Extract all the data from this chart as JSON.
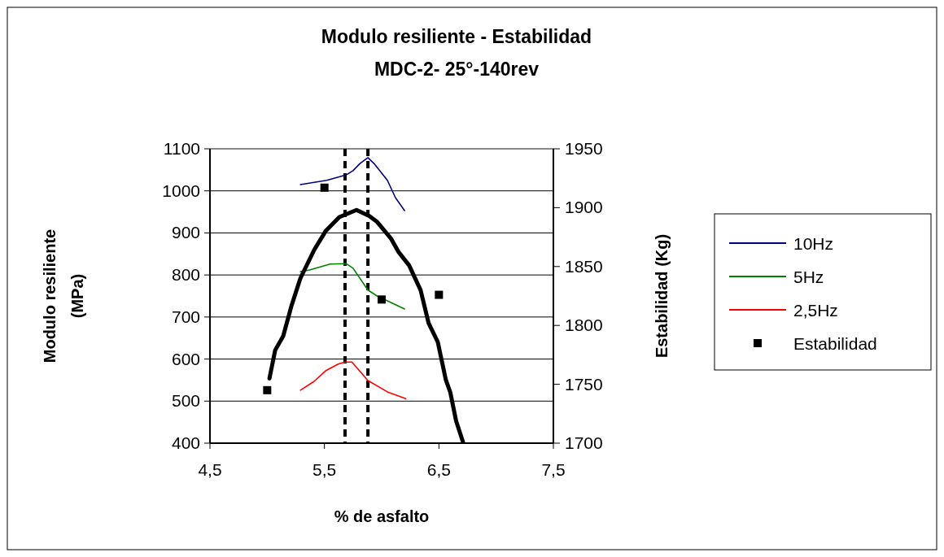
{
  "chart_data": {
    "type": "line",
    "title": "Modulo resiliente - Estabilidad",
    "subtitle": "MDC-2- 25°-140rev",
    "xlabel": "% de asfalto",
    "ylabel": "Modulo resiliente (MPa)",
    "y2label": "Estabilidad (Kg)",
    "xlim": [
      4.5,
      7.5
    ],
    "xticks": [
      {
        "value": 4.5,
        "label": "4,5"
      },
      {
        "value": 5.5,
        "label": "5,5"
      },
      {
        "value": 6.5,
        "label": "6,5"
      },
      {
        "value": 7.5,
        "label": "7,5"
      }
    ],
    "ylim": [
      400,
      1100
    ],
    "yticks": [
      400,
      500,
      600,
      700,
      800,
      900,
      1000,
      1100
    ],
    "y2lim": [
      1700,
      1950
    ],
    "y2ticks": [
      1700,
      1750,
      1800,
      1850,
      1900,
      1950
    ],
    "grid": "y",
    "legend": "right",
    "marker": "none",
    "ref_lines": [
      {
        "axis": "x",
        "value": 5.68,
        "line_style": "dashed",
        "color": "#000000"
      },
      {
        "axis": "x",
        "value": 5.88,
        "line_style": "dashed",
        "color": "#000000"
      }
    ],
    "series": [
      {
        "name": "10Hz",
        "color": "#000080",
        "x": [
          5.29,
          5.52,
          5.61,
          5.69,
          5.75,
          5.81,
          5.88,
          5.94,
          6.05,
          6.12,
          6.2
        ],
        "values": [
          1015,
          1025,
          1032,
          1038,
          1048,
          1065,
          1079,
          1063,
          1025,
          984,
          953
        ]
      },
      {
        "name": "5Hz",
        "color": "#008000",
        "x": [
          5.29,
          5.37,
          5.55,
          5.69,
          5.75,
          5.88,
          5.96,
          6.2
        ],
        "values": [
          808,
          812,
          826,
          827,
          816,
          764,
          750,
          719
        ]
      },
      {
        "name": "2,5Hz",
        "color": "#ff0000",
        "x": [
          5.29,
          5.41,
          5.51,
          5.62,
          5.68,
          5.74,
          5.8,
          5.88,
          6.05,
          6.21
        ],
        "values": [
          526,
          547,
          572,
          588,
          593,
          593,
          574,
          549,
          522,
          506
        ]
      },
      {
        "name": "Estabilidad",
        "type": "scatter",
        "axis": "y2",
        "marker": "square",
        "color": "#000000",
        "x": [
          5.0,
          5.5,
          6.0,
          6.5
        ],
        "values": [
          1745,
          1917,
          1822,
          1826
        ]
      },
      {
        "axis": "y2",
        "color": "#000000",
        "x": [
          5.02,
          5.07,
          5.14,
          5.21,
          5.29,
          5.41,
          5.51,
          5.63,
          5.78,
          5.89,
          5.96,
          6.08,
          6.15,
          6.24,
          6.34,
          6.41,
          6.49,
          6.56,
          6.6,
          6.65,
          6.71
        ],
        "values": [
          1755,
          1779,
          1791,
          1816,
          1840,
          1864,
          1880,
          1892,
          1898,
          1893,
          1888,
          1874,
          1862,
          1851,
          1830,
          1802,
          1786,
          1754,
          1743,
          1719,
          1701
        ]
      }
    ]
  }
}
